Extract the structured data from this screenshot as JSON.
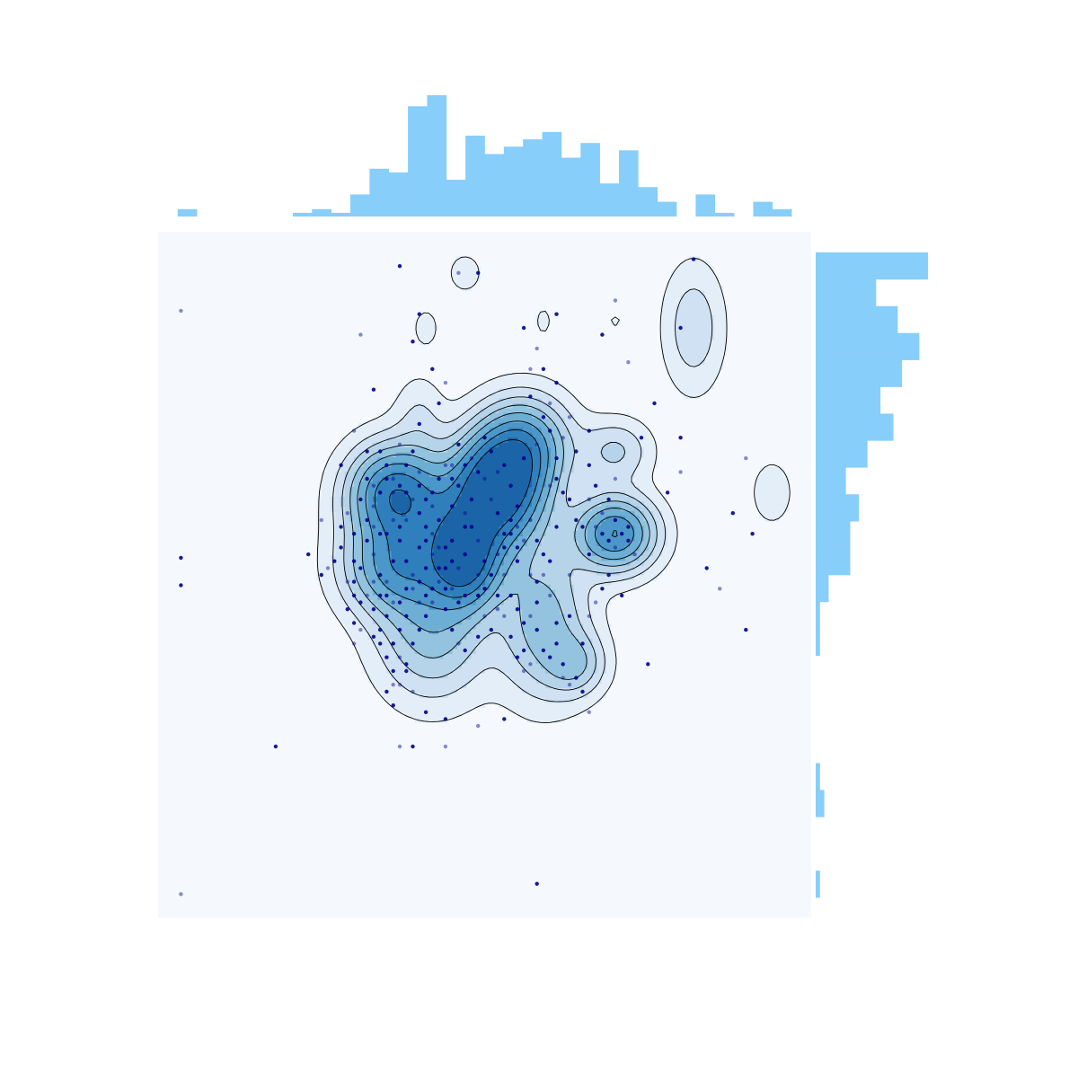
{
  "chart_data": {
    "type": "scatter",
    "subtype": "joint-plot-kde-with-marginal-histograms",
    "title": "",
    "xlabel": "",
    "ylabel": "",
    "xlim": [
      0,
      100
    ],
    "ylim": [
      0,
      100
    ],
    "axes_visible": false,
    "grid": false,
    "colors": {
      "background_panel": "#f5f9fd",
      "marginal_bars": "#87cefa",
      "points": "#00008b",
      "contour_lines": "#000000",
      "kde_levels": [
        "#e3eef8",
        "#cfe1f2",
        "#b5d4e9",
        "#93c3df",
        "#6daed5",
        "#4b97c9",
        "#2f7fbc",
        "#1b64a8"
      ]
    },
    "marginal_x": {
      "bins": 32,
      "range": [
        3,
        97
      ],
      "counts": [
        2,
        0,
        0,
        0,
        0,
        0,
        1,
        2,
        1,
        6,
        13,
        12,
        30,
        33,
        10,
        22,
        17,
        19,
        21,
        23,
        16,
        20,
        9,
        18,
        8,
        4,
        0,
        6,
        1,
        0,
        4,
        2
      ]
    },
    "marginal_y": {
      "bins": 24,
      "range": [
        3,
        97
      ],
      "counts": [
        1,
        0,
        0,
        2,
        1,
        0,
        0,
        0,
        0,
        1,
        1,
        3,
        8,
        8,
        10,
        7,
        12,
        18,
        15,
        20,
        24,
        19,
        14,
        26
      ]
    },
    "density_peaks": [
      {
        "x": 36,
        "y": 62,
        "weight": 1.0,
        "sx": 4.5,
        "sy": 4.5
      },
      {
        "x": 52,
        "y": 63,
        "weight": 1.3,
        "sx": 4.5,
        "sy": 5.0
      },
      {
        "x": 47,
        "y": 52,
        "weight": 1.1,
        "sx": 3.5,
        "sy": 4.5
      },
      {
        "x": 70,
        "y": 56,
        "weight": 1.0,
        "sx": 4.0,
        "sy": 3.5
      },
      {
        "x": 36,
        "y": 51,
        "weight": 0.7,
        "sx": 5.0,
        "sy": 4.5
      },
      {
        "x": 56,
        "y": 69,
        "weight": 0.8,
        "sx": 4.5,
        "sy": 4.5
      },
      {
        "x": 42,
        "y": 42,
        "weight": 0.5,
        "sx": 5.5,
        "sy": 6.5
      },
      {
        "x": 59,
        "y": 43,
        "weight": 0.5,
        "sx": 4.5,
        "sy": 7.0
      },
      {
        "x": 46,
        "y": 58,
        "weight": 0.6,
        "sx": 8.0,
        "sy": 6.0
      },
      {
        "x": 70,
        "y": 68,
        "weight": 0.3,
        "sx": 3.5,
        "sy": 3.0
      },
      {
        "x": 64,
        "y": 37,
        "weight": 0.35,
        "sx": 3.0,
        "sy": 3.0
      },
      {
        "x": 82,
        "y": 86,
        "weight": 0.25,
        "sx": 3.0,
        "sy": 6.0
      },
      {
        "x": 94,
        "y": 62,
        "weight": 0.15,
        "sx": 2.0,
        "sy": 3.0
      },
      {
        "x": 47,
        "y": 94,
        "weight": 0.12,
        "sx": 1.8,
        "sy": 2.0
      },
      {
        "x": 41,
        "y": 86,
        "weight": 0.1,
        "sx": 1.5,
        "sy": 2.2
      },
      {
        "x": 59,
        "y": 87,
        "weight": 0.08,
        "sx": 1.2,
        "sy": 2.0
      },
      {
        "x": 70,
        "y": 87,
        "weight": 0.07,
        "sx": 1.2,
        "sy": 1.2
      },
      {
        "x": 40,
        "y": 73,
        "weight": 0.15,
        "sx": 2.5,
        "sy": 4.0
      }
    ],
    "points": [
      [
        3.5,
        88.5
      ],
      [
        3.5,
        52.5
      ],
      [
        3.5,
        48.5
      ],
      [
        3.5,
        3.5
      ],
      [
        18,
        25
      ],
      [
        37,
        95
      ],
      [
        37,
        25
      ],
      [
        38,
        37
      ],
      [
        39,
        25
      ],
      [
        44,
        25
      ],
      [
        44,
        29
      ],
      [
        41,
        30
      ],
      [
        49,
        28
      ],
      [
        53,
        29
      ],
      [
        58,
        5
      ],
      [
        66,
        30
      ],
      [
        75,
        37
      ],
      [
        84,
        51
      ],
      [
        86,
        48
      ],
      [
        90,
        42
      ],
      [
        91,
        56
      ],
      [
        90,
        67
      ],
      [
        88,
        59
      ],
      [
        78,
        62
      ],
      [
        80,
        65
      ],
      [
        80,
        70
      ],
      [
        76,
        75
      ],
      [
        72,
        81
      ],
      [
        82,
        96
      ],
      [
        80,
        86
      ],
      [
        70,
        90
      ],
      [
        68,
        85
      ],
      [
        61,
        88
      ],
      [
        58,
        83
      ],
      [
        56,
        86
      ],
      [
        49,
        94
      ],
      [
        46,
        94
      ],
      [
        40,
        88
      ],
      [
        39,
        84
      ],
      [
        31,
        85
      ],
      [
        33,
        77
      ],
      [
        42,
        80
      ],
      [
        44,
        78
      ],
      [
        43,
        75
      ],
      [
        40,
        72
      ],
      [
        45,
        66
      ],
      [
        46,
        69
      ],
      [
        47,
        66
      ],
      [
        30,
        71
      ],
      [
        28,
        66
      ],
      [
        32,
        68
      ],
      [
        37,
        69
      ],
      [
        48,
        61
      ],
      [
        49,
        65
      ],
      [
        52,
        65
      ],
      [
        53,
        66
      ],
      [
        54,
        63
      ],
      [
        51,
        61
      ],
      [
        52,
        59
      ],
      [
        55,
        60
      ],
      [
        55,
        57
      ],
      [
        54,
        56
      ],
      [
        56,
        67
      ],
      [
        58,
        69
      ],
      [
        60,
        71
      ],
      [
        59,
        73
      ],
      [
        60,
        75
      ],
      [
        61,
        78
      ],
      [
        59,
        80
      ],
      [
        57,
        80
      ],
      [
        57,
        76
      ],
      [
        61,
        67
      ],
      [
        60,
        63
      ],
      [
        62,
        62
      ],
      [
        63,
        61
      ],
      [
        62,
        70
      ],
      [
        64,
        68
      ],
      [
        66,
        71
      ],
      [
        63,
        73
      ],
      [
        66,
        66
      ],
      [
        67,
        63
      ],
      [
        66,
        61
      ],
      [
        64,
        58
      ],
      [
        65,
        57
      ],
      [
        67,
        57
      ],
      [
        68,
        56
      ],
      [
        69,
        55
      ],
      [
        70,
        54
      ],
      [
        72,
        55
      ],
      [
        72,
        57
      ],
      [
        73,
        53
      ],
      [
        71,
        56
      ],
      [
        70,
        58
      ],
      [
        68,
        59
      ],
      [
        61,
        57
      ],
      [
        60,
        52
      ],
      [
        59,
        50
      ],
      [
        58,
        49
      ],
      [
        58,
        46
      ],
      [
        57,
        44
      ],
      [
        58,
        42
      ],
      [
        56,
        43
      ],
      [
        57,
        50
      ],
      [
        55,
        54
      ],
      [
        53,
        54
      ],
      [
        53,
        50
      ],
      [
        54,
        47
      ],
      [
        55,
        45
      ],
      [
        52,
        45
      ],
      [
        51,
        42
      ],
      [
        55,
        38
      ],
      [
        56,
        36
      ],
      [
        60,
        38
      ],
      [
        62,
        37
      ],
      [
        63,
        34
      ],
      [
        65,
        33
      ],
      [
        64,
        35
      ],
      [
        62,
        35
      ],
      [
        61,
        40
      ],
      [
        61,
        43
      ],
      [
        60,
        47
      ],
      [
        59,
        53
      ],
      [
        58,
        55
      ],
      [
        57,
        58
      ],
      [
        61,
        64
      ],
      [
        66,
        53
      ],
      [
        63,
        50
      ],
      [
        71,
        47
      ],
      [
        68,
        48
      ],
      [
        66,
        44
      ],
      [
        63,
        44
      ],
      [
        47,
        53
      ],
      [
        46,
        51
      ],
      [
        45,
        52
      ],
      [
        44,
        54
      ],
      [
        42,
        56
      ],
      [
        41,
        57
      ],
      [
        40,
        59
      ],
      [
        39,
        61
      ],
      [
        38,
        62
      ],
      [
        37,
        63
      ],
      [
        36,
        62
      ],
      [
        35,
        64
      ],
      [
        34,
        62
      ],
      [
        33,
        60
      ],
      [
        32,
        58
      ],
      [
        32,
        55
      ],
      [
        33,
        53
      ],
      [
        31,
        51
      ],
      [
        30,
        52
      ],
      [
        29,
        49
      ],
      [
        29,
        45
      ],
      [
        30,
        43
      ],
      [
        31,
        42
      ],
      [
        33,
        41
      ],
      [
        34,
        40
      ],
      [
        36,
        40
      ],
      [
        37,
        42
      ],
      [
        38,
        44
      ],
      [
        40,
        46
      ],
      [
        41,
        47
      ],
      [
        42,
        48
      ],
      [
        43,
        49
      ],
      [
        44,
        45
      ],
      [
        45,
        42
      ],
      [
        46,
        40
      ],
      [
        47,
        39
      ],
      [
        49,
        41
      ],
      [
        50,
        44
      ],
      [
        49,
        47
      ],
      [
        50,
        52
      ],
      [
        49,
        55
      ],
      [
        48,
        57
      ],
      [
        47,
        57
      ],
      [
        47,
        59
      ],
      [
        45,
        60
      ],
      [
        43,
        58
      ],
      [
        42,
        60
      ],
      [
        41,
        61
      ],
      [
        40,
        63
      ],
      [
        38,
        58
      ],
      [
        37,
        55
      ],
      [
        36,
        52
      ],
      [
        35,
        49
      ],
      [
        34,
        47
      ],
      [
        35,
        44
      ],
      [
        37,
        38
      ],
      [
        38,
        36
      ],
      [
        39,
        40
      ],
      [
        37,
        34
      ],
      [
        36,
        40
      ],
      [
        35,
        38
      ],
      [
        36,
        34
      ],
      [
        35,
        33
      ],
      [
        36,
        31
      ],
      [
        39,
        33
      ],
      [
        40,
        42
      ],
      [
        41,
        44
      ],
      [
        42,
        46
      ],
      [
        44,
        51
      ],
      [
        45,
        55
      ],
      [
        43,
        54
      ],
      [
        41,
        55
      ],
      [
        40,
        54
      ],
      [
        39,
        50
      ],
      [
        38,
        52
      ],
      [
        37,
        57
      ],
      [
        36,
        58
      ],
      [
        35,
        56
      ],
      [
        34,
        56
      ],
      [
        33,
        57
      ],
      [
        31,
        61
      ],
      [
        30,
        56
      ],
      [
        29,
        59
      ],
      [
        28,
        54
      ],
      [
        27,
        52
      ],
      [
        26,
        51
      ],
      [
        25,
        50
      ],
      [
        23,
        53
      ],
      [
        25,
        58
      ],
      [
        28,
        57
      ],
      [
        30,
        49
      ],
      [
        32,
        47
      ],
      [
        33,
        45
      ],
      [
        34,
        42
      ],
      [
        48,
        67
      ],
      [
        50,
        70
      ],
      [
        51,
        68
      ],
      [
        50,
        64
      ],
      [
        46,
        63
      ],
      [
        45,
        64
      ],
      [
        44,
        66
      ],
      [
        43,
        64
      ],
      [
        42,
        62
      ],
      [
        40,
        65
      ],
      [
        38,
        66
      ],
      [
        39,
        68
      ],
      [
        36,
        64
      ],
      [
        35,
        66
      ],
      [
        34,
        68
      ],
      [
        33,
        63
      ],
      [
        32,
        64
      ],
      [
        52,
        47
      ],
      [
        53,
        44
      ],
      [
        54,
        41
      ],
      [
        56,
        39
      ],
      [
        57,
        37
      ],
      [
        59,
        39
      ],
      [
        55,
        52
      ],
      [
        56,
        55
      ],
      [
        54,
        58
      ],
      [
        53,
        56
      ],
      [
        52,
        53
      ],
      [
        51,
        50
      ],
      [
        50,
        48
      ],
      [
        49,
        50
      ],
      [
        47,
        47
      ],
      [
        46,
        46
      ],
      [
        45,
        48
      ],
      [
        44,
        48
      ],
      [
        43,
        51
      ],
      [
        42,
        53
      ],
      [
        41,
        51
      ],
      [
        40,
        49
      ],
      [
        39,
        48
      ],
      [
        38,
        48
      ],
      [
        37,
        46
      ],
      [
        36,
        46
      ],
      [
        35,
        47
      ],
      [
        34,
        50
      ],
      [
        33,
        49
      ],
      [
        31,
        46
      ],
      [
        30,
        47
      ],
      [
        30,
        40
      ],
      [
        36,
        36
      ],
      [
        65,
        40
      ],
      [
        67,
        46
      ],
      [
        69,
        50
      ],
      [
        69,
        61
      ],
      [
        70,
        64
      ],
      [
        74,
        70
      ]
    ]
  }
}
